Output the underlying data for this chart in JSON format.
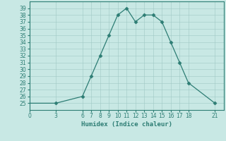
{
  "x": [
    0,
    3,
    6,
    7,
    8,
    9,
    10,
    11,
    12,
    13,
    14,
    15,
    16,
    17,
    18,
    21
  ],
  "y": [
    25,
    25,
    26,
    29,
    32,
    35,
    38,
    39,
    37,
    38,
    38,
    37,
    34,
    31,
    28,
    25
  ],
  "markers": [
    3,
    6,
    7,
    8,
    9,
    10,
    11,
    12,
    13,
    14,
    15,
    16,
    17,
    18,
    21
  ],
  "line_color": "#2d7d74",
  "bg_color": "#c8e8e4",
  "grid_color": "#a0c8c4",
  "xlabel": "Humidex (Indice chaleur)",
  "ylim": [
    24,
    40
  ],
  "xlim": [
    0,
    22
  ],
  "xticks": [
    0,
    3,
    6,
    7,
    8,
    9,
    10,
    11,
    12,
    13,
    14,
    15,
    16,
    17,
    18,
    21
  ],
  "yticks": [
    25,
    26,
    27,
    28,
    29,
    30,
    31,
    32,
    33,
    34,
    35,
    36,
    37,
    38,
    39
  ],
  "axis_fontsize": 5.5,
  "label_fontsize": 6.5,
  "marker_size": 2.5,
  "linewidth": 0.9
}
